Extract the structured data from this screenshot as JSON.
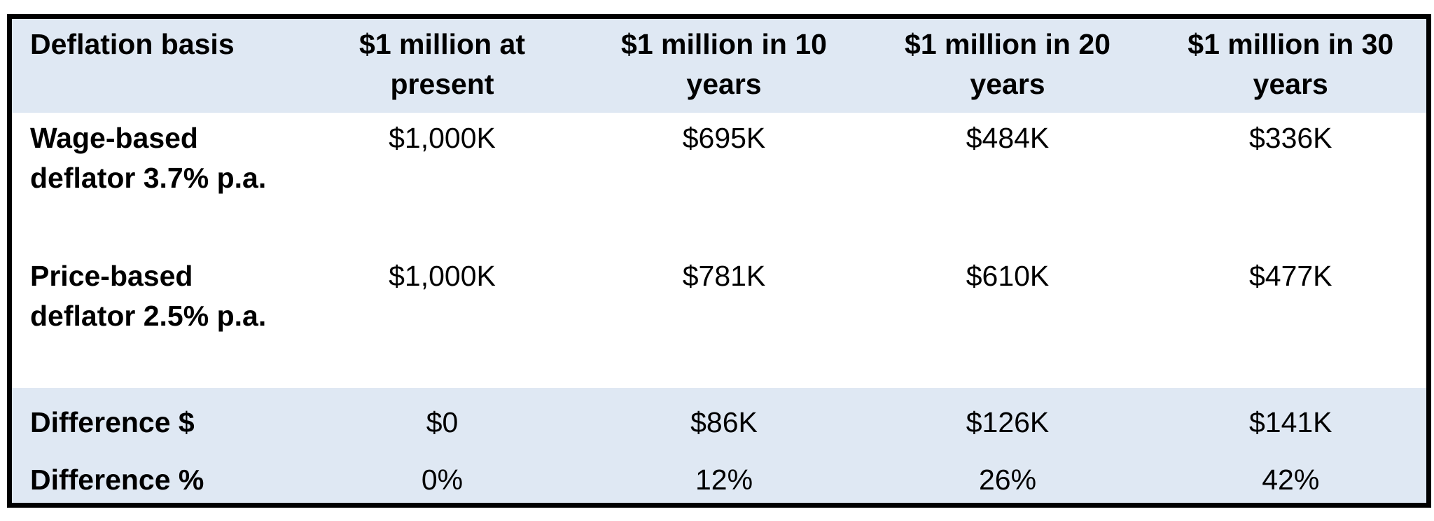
{
  "table": {
    "header": [
      "Deflation basis",
      "$1 million at present",
      "$1 million in 10 years",
      "$1 million in 20 years",
      "$1 million in 30 years"
    ],
    "rows": [
      [
        "Wage-based deflator 3.7% p.a.",
        "$1,000K",
        "$695K",
        "$484K",
        "$336K"
      ],
      [
        "Price-based deflator 2.5% p.a.",
        "$1,000K",
        "$781K",
        "$610K",
        "$477K"
      ],
      [
        "Difference $",
        "$0",
        "$86K",
        "$126K",
        "$141K"
      ],
      [
        "Difference %",
        "0%",
        "12%",
        "26%",
        "42%"
      ]
    ]
  }
}
